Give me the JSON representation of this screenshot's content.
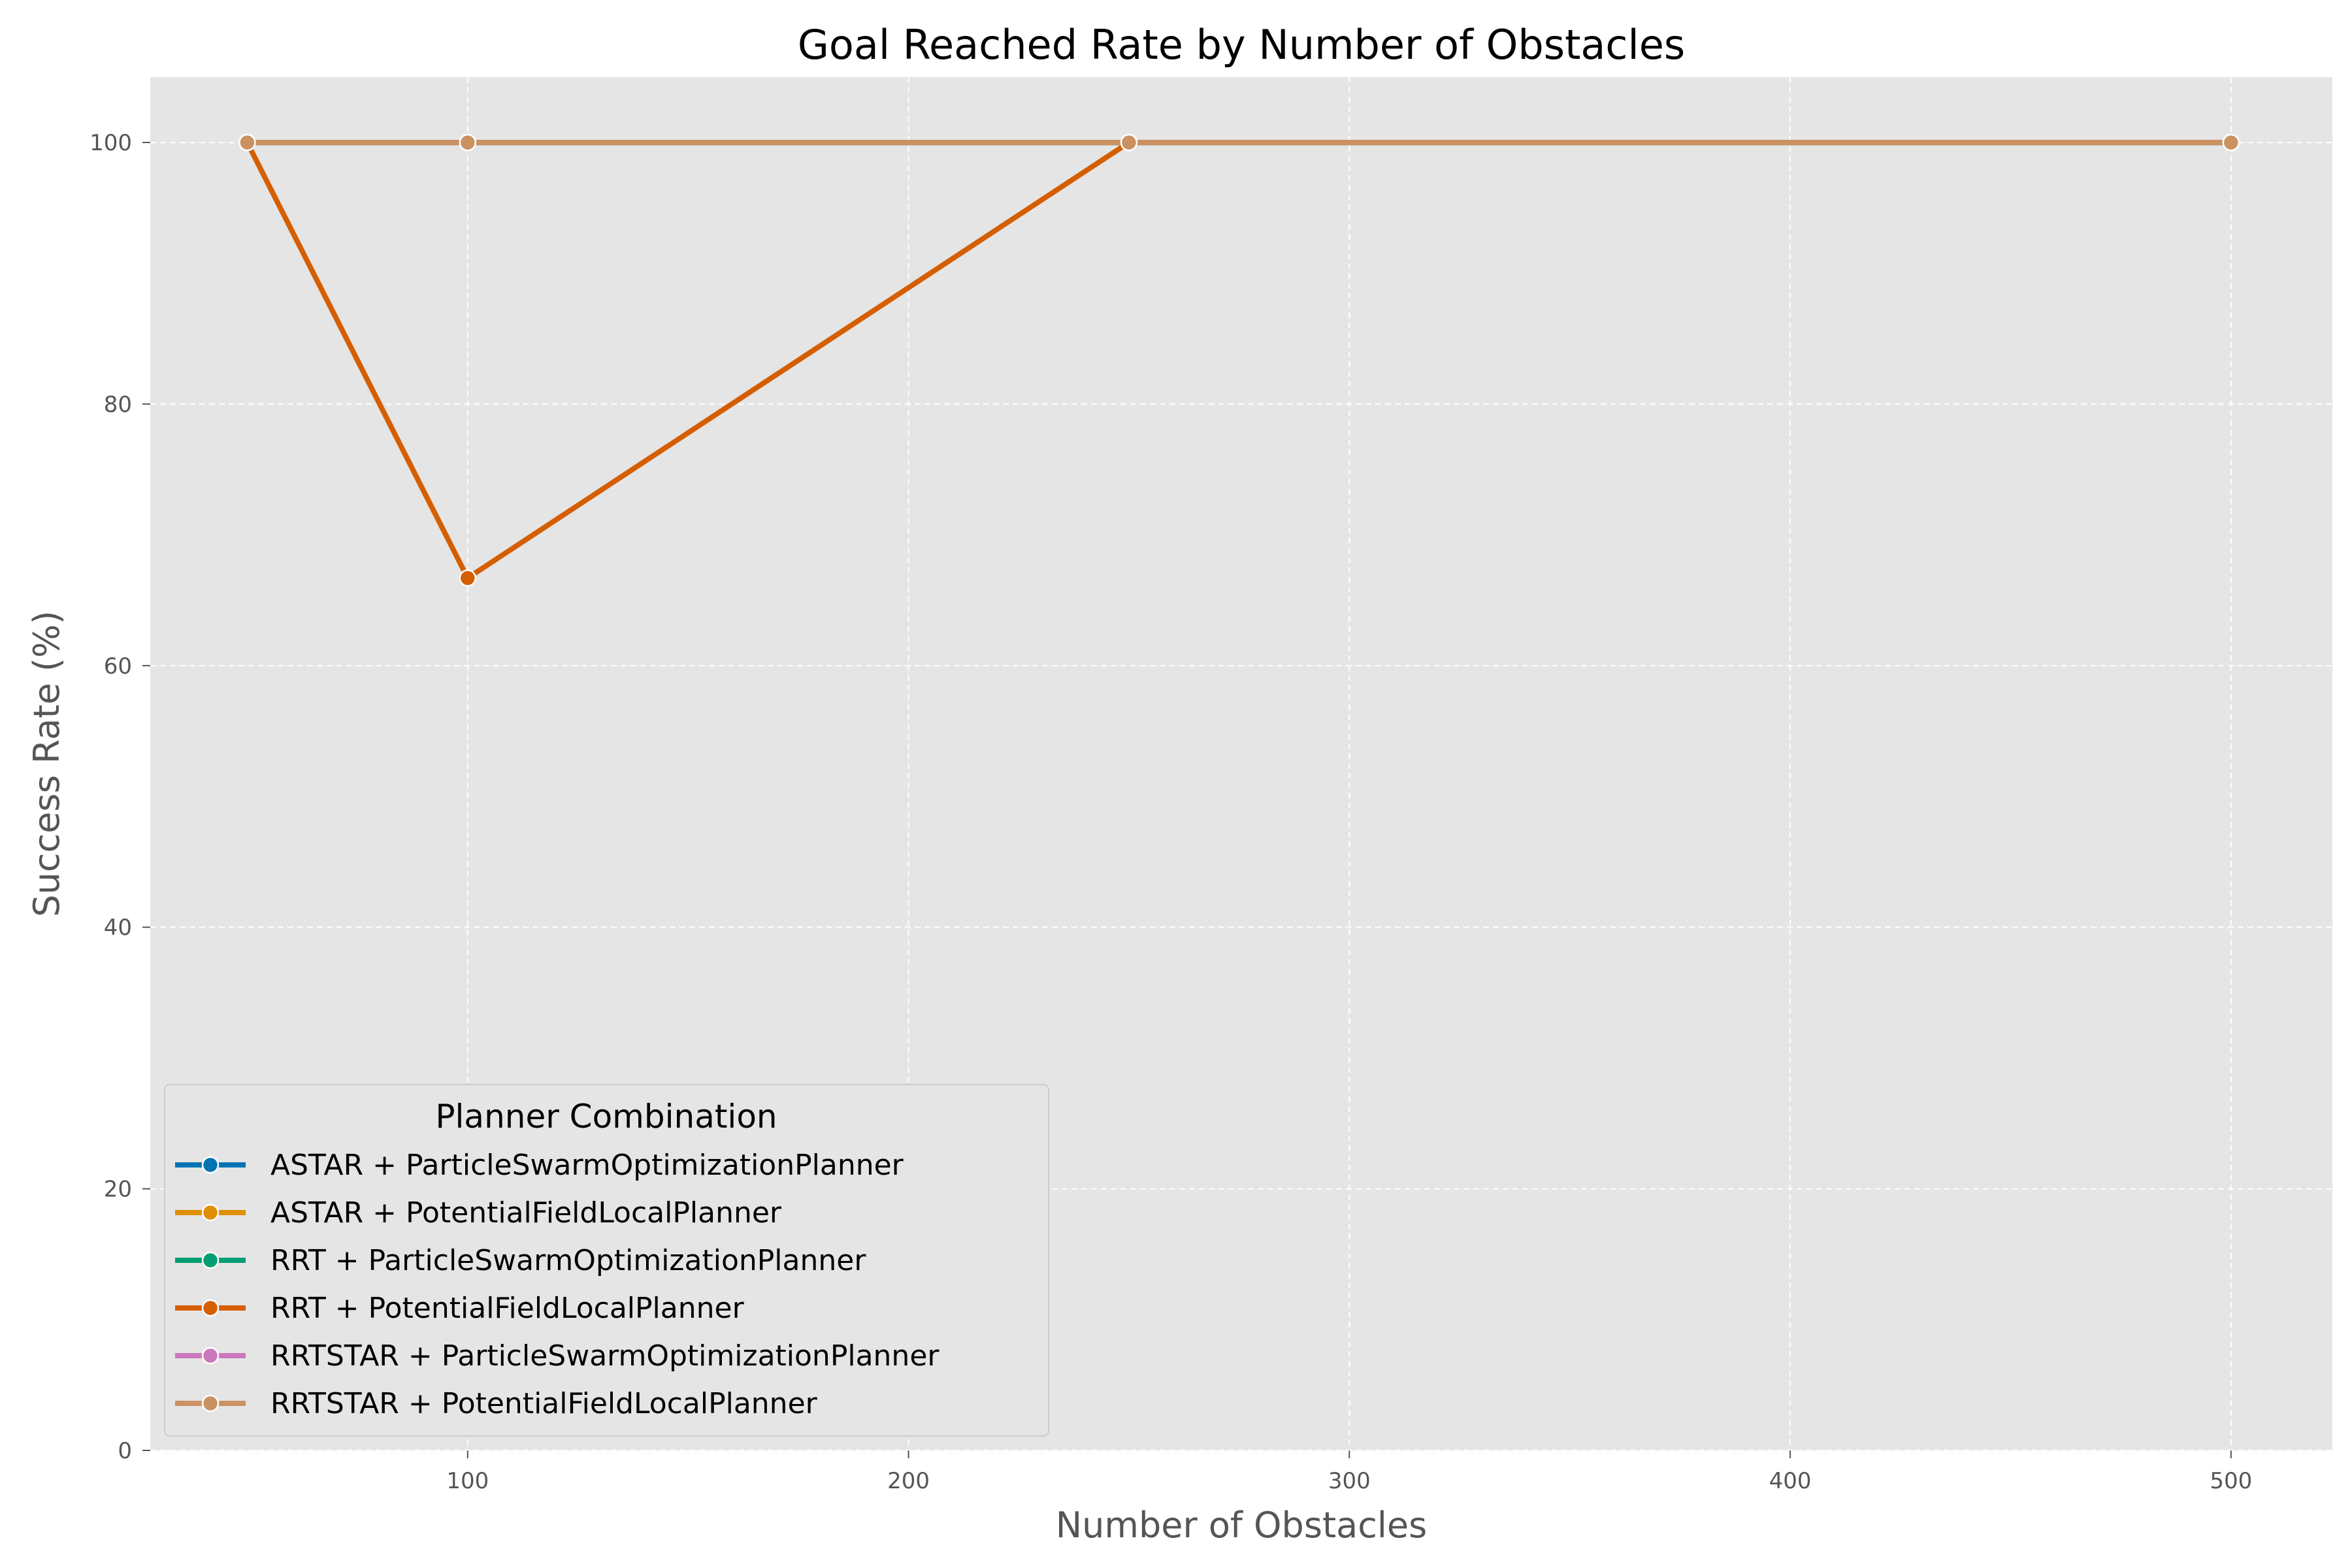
{
  "chart_data": {
    "type": "line",
    "title": "Goal Reached Rate by Number of Obstacles",
    "xlabel": "Number of Obstacles",
    "ylabel": "Success Rate (%)",
    "xlim": [
      28,
      523
    ],
    "ylim": [
      0,
      105
    ],
    "xticks": [
      100,
      200,
      300,
      400,
      500
    ],
    "yticks": [
      0,
      20,
      40,
      60,
      80,
      100
    ],
    "grid": true,
    "legend": {
      "title": "Planner Combination",
      "placement": "lower-left"
    },
    "series": [
      {
        "name": "ASTAR + ParticleSwarmOptimizationPlanner",
        "color": "#0173b2",
        "x": [
          50,
          100,
          250,
          500
        ],
        "y": [
          100,
          100,
          100,
          100
        ]
      },
      {
        "name": "ASTAR + PotentialFieldLocalPlanner",
        "color": "#de8f05",
        "x": [
          50,
          100,
          250,
          500
        ],
        "y": [
          100,
          100,
          100,
          100
        ]
      },
      {
        "name": "RRT + ParticleSwarmOptimizationPlanner",
        "color": "#029e73",
        "x": [
          50,
          100,
          250,
          500
        ],
        "y": [
          100,
          100,
          100,
          100
        ]
      },
      {
        "name": "RRT + PotentialFieldLocalPlanner",
        "color": "#d55e00",
        "x": [
          50,
          100,
          250,
          500
        ],
        "y": [
          100,
          66.7,
          100,
          100
        ]
      },
      {
        "name": "RRTSTAR + ParticleSwarmOptimizationPlanner",
        "color": "#cc78bc",
        "x": [
          50,
          100,
          250,
          500
        ],
        "y": [
          100,
          100,
          100,
          100
        ]
      },
      {
        "name": "RRTSTAR + PotentialFieldLocalPlanner",
        "color": "#ca9161",
        "x": [
          50,
          100,
          250,
          500
        ],
        "y": [
          100,
          100,
          100,
          100
        ]
      }
    ]
  }
}
